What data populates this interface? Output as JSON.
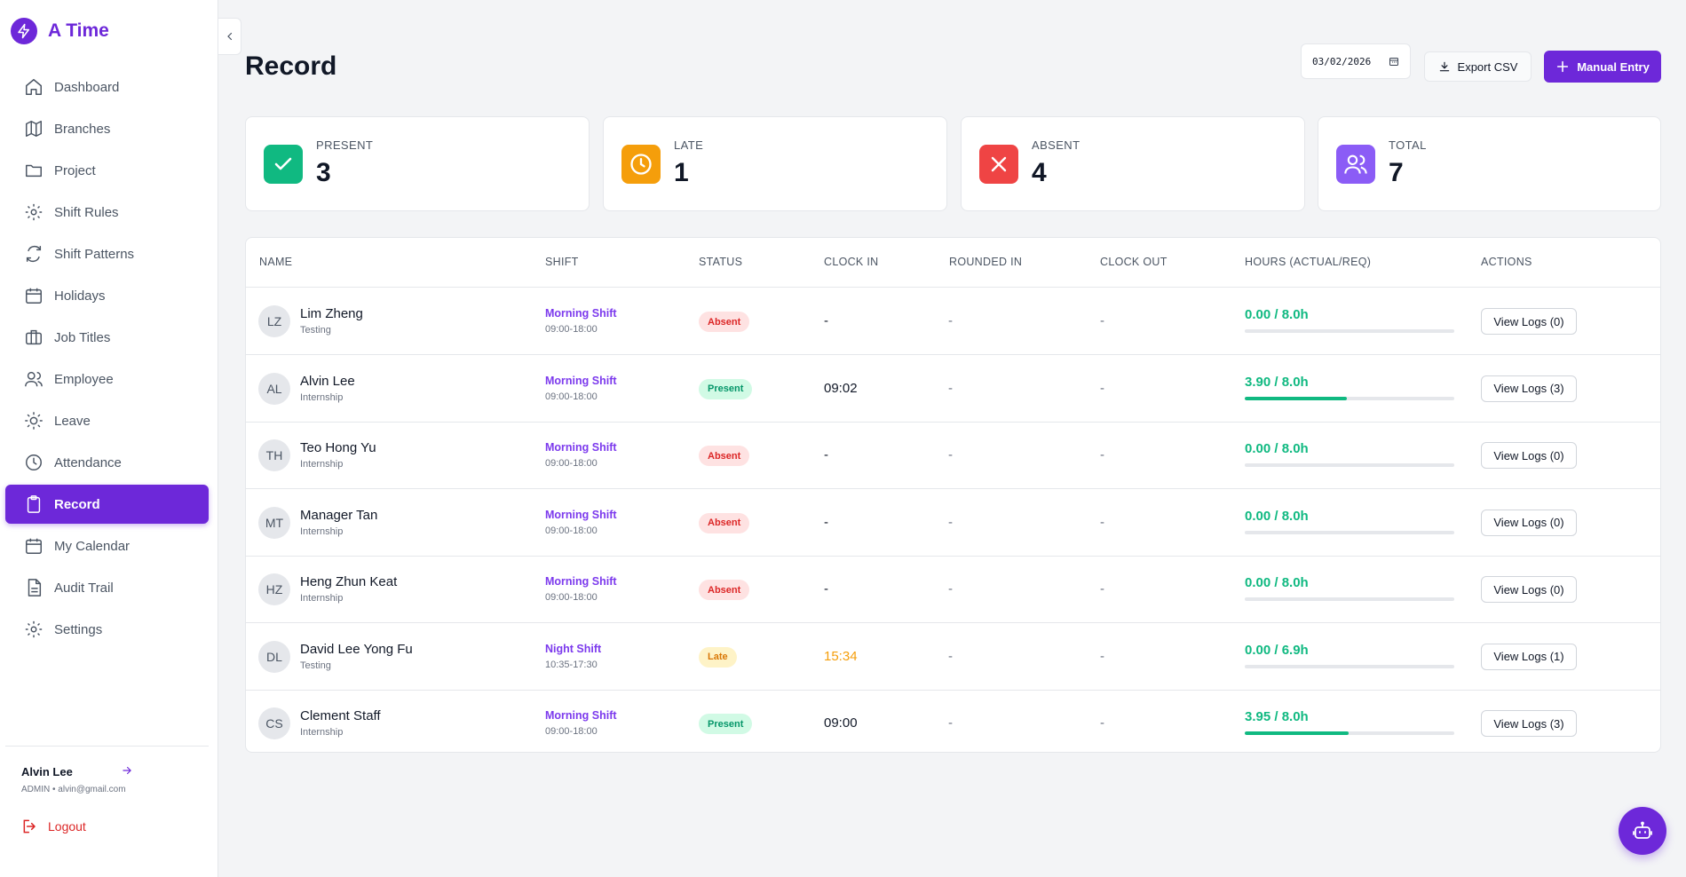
{
  "app": {
    "name": "A Time"
  },
  "sidebar": {
    "items": [
      {
        "label": "Dashboard",
        "icon": "home-icon"
      },
      {
        "label": "Branches",
        "icon": "map-icon"
      },
      {
        "label": "Project",
        "icon": "folder-icon"
      },
      {
        "label": "Shift Rules",
        "icon": "gear-icon"
      },
      {
        "label": "Shift Patterns",
        "icon": "refresh-icon"
      },
      {
        "label": "Holidays",
        "icon": "calendar-icon"
      },
      {
        "label": "Job Titles",
        "icon": "briefcase-icon"
      },
      {
        "label": "Employee",
        "icon": "users-icon"
      },
      {
        "label": "Leave",
        "icon": "sun-icon"
      },
      {
        "label": "Attendance",
        "icon": "clock-icon"
      },
      {
        "label": "Record",
        "icon": "clipboard-icon",
        "active": true
      },
      {
        "label": "My Calendar",
        "icon": "calendar-icon"
      },
      {
        "label": "Audit Trail",
        "icon": "file-icon"
      },
      {
        "label": "Settings",
        "icon": "gear-icon"
      }
    ],
    "user": {
      "name": "Alvin Lee",
      "meta": "ADMIN • alvin@gmail.com"
    },
    "logout_label": "Logout"
  },
  "header": {
    "title": "Record",
    "date_value": "03/02/2026",
    "export_label": "Export CSV",
    "manual_label": "Manual Entry"
  },
  "stats": [
    {
      "label": "PRESENT",
      "value": "3",
      "color": "#10b981",
      "icon": "check-icon"
    },
    {
      "label": "LATE",
      "value": "1",
      "color": "#f59e0b",
      "icon": "clock-icon"
    },
    {
      "label": "ABSENT",
      "value": "4",
      "color": "#ef4444",
      "icon": "x-icon"
    },
    {
      "label": "TOTAL",
      "value": "7",
      "color": "#8b5cf6",
      "icon": "users-icon"
    }
  ],
  "table": {
    "columns": [
      "NAME",
      "SHIFT",
      "STATUS",
      "CLOCK IN",
      "ROUNDED IN",
      "CLOCK OUT",
      "HOURS (ACTUAL/REQ)",
      "ACTIONS"
    ],
    "rows": [
      {
        "initials": "LZ",
        "name": "Lim Zheng",
        "dept": "Testing",
        "shift": "Morning Shift",
        "shift_time": "09:00-18:00",
        "status": "Absent",
        "status_type": "absent",
        "clock_in": "-",
        "rounded_in": "-",
        "clock_out": "-",
        "hours": "0.00 / 8.0h",
        "progress": 0,
        "action": "View Logs (0)"
      },
      {
        "initials": "AL",
        "name": "Alvin Lee",
        "dept": "Internship",
        "shift": "Morning Shift",
        "shift_time": "09:00-18:00",
        "status": "Present",
        "status_type": "present",
        "clock_in": "09:02",
        "rounded_in": "-",
        "clock_out": "-",
        "hours": "3.90 / 8.0h",
        "progress": 0.4875,
        "action": "View Logs (3)"
      },
      {
        "initials": "TH",
        "name": "Teo Hong Yu",
        "dept": "Internship",
        "shift": "Morning Shift",
        "shift_time": "09:00-18:00",
        "status": "Absent",
        "status_type": "absent",
        "clock_in": "-",
        "rounded_in": "-",
        "clock_out": "-",
        "hours": "0.00 / 8.0h",
        "progress": 0,
        "action": "View Logs (0)"
      },
      {
        "initials": "MT",
        "name": "Manager Tan",
        "dept": "Internship",
        "shift": "Morning Shift",
        "shift_time": "09:00-18:00",
        "status": "Absent",
        "status_type": "absent",
        "clock_in": "-",
        "rounded_in": "-",
        "clock_out": "-",
        "hours": "0.00 / 8.0h",
        "progress": 0,
        "action": "View Logs (0)"
      },
      {
        "initials": "HZ",
        "name": "Heng Zhun Keat",
        "dept": "Internship",
        "shift": "Morning Shift",
        "shift_time": "09:00-18:00",
        "status": "Absent",
        "status_type": "absent",
        "clock_in": "-",
        "rounded_in": "-",
        "clock_out": "-",
        "hours": "0.00 / 8.0h",
        "progress": 0,
        "action": "View Logs (0)"
      },
      {
        "initials": "DL",
        "name": "David Lee Yong Fu",
        "dept": "Testing",
        "shift": "Night Shift",
        "shift_time": "10:35-17:30",
        "status": "Late",
        "status_type": "late",
        "clock_in": "15:34",
        "rounded_in": "-",
        "clock_out": "-",
        "hours": "0.00 / 6.9h",
        "progress": 0,
        "action": "View Logs (1)"
      },
      {
        "initials": "CS",
        "name": "Clement Staff",
        "dept": "Internship",
        "shift": "Morning Shift",
        "shift_time": "09:00-18:00",
        "status": "Present",
        "status_type": "present",
        "clock_in": "09:00",
        "rounded_in": "-",
        "clock_out": "-",
        "hours": "3.95 / 8.0h",
        "progress": 0.49375,
        "action": "View Logs (3)"
      }
    ]
  },
  "colors": {
    "accent": "#6d28d9"
  }
}
